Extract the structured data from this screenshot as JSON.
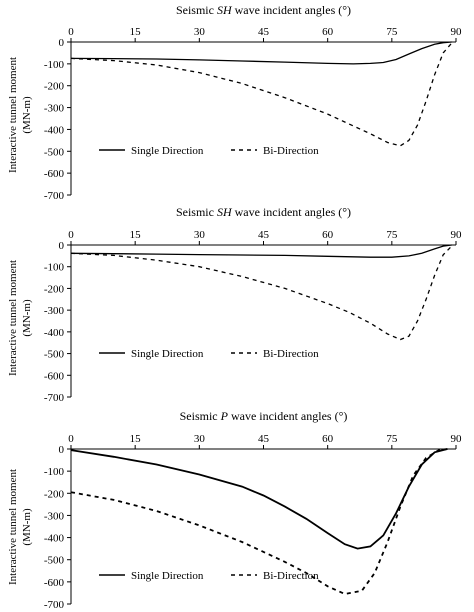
{
  "ylabel_line1": "Interactive tunnel moment",
  "ylabel_line2": "(MN-m)",
  "legend_labels": [
    "Single Direction",
    "Bi-Direction"
  ],
  "chart_data": [
    {
      "type": "line",
      "title_prefix": "Seismic ",
      "title_wave": "SH",
      "title_suffix": " wave incident angles (°)",
      "x_ticks": [
        0,
        15,
        30,
        45,
        60,
        75,
        90
      ],
      "y_ticks": [
        0,
        -100,
        -200,
        -300,
        -400,
        -500,
        -600,
        -700
      ],
      "xlim": [
        0,
        90
      ],
      "ylim": [
        -700,
        0
      ],
      "x_axis_position": "top",
      "legend_position": "lower-left",
      "series": [
        {
          "name": "Single Direction",
          "style": "solid",
          "x": [
            0,
            10,
            20,
            30,
            40,
            50,
            60,
            66,
            70,
            73,
            76,
            79,
            82,
            85,
            87,
            89
          ],
          "y": [
            -75,
            -76,
            -78,
            -82,
            -87,
            -92,
            -98,
            -100,
            -98,
            -94,
            -80,
            -55,
            -30,
            -10,
            -3,
            0
          ]
        },
        {
          "name": "Bi-Direction",
          "style": "dashed",
          "x": [
            0,
            10,
            20,
            30,
            40,
            50,
            60,
            65,
            70,
            74,
            77,
            79,
            81,
            83,
            85,
            87,
            89
          ],
          "y": [
            -75,
            -85,
            -105,
            -140,
            -190,
            -255,
            -330,
            -375,
            -420,
            -460,
            -475,
            -450,
            -380,
            -270,
            -150,
            -50,
            -5
          ]
        }
      ]
    },
    {
      "type": "line",
      "title_prefix": "Seismic ",
      "title_wave": "SH",
      "title_suffix": " wave incident angles (°)",
      "x_ticks": [
        0,
        15,
        30,
        45,
        60,
        75,
        90
      ],
      "y_ticks": [
        0,
        -100,
        -200,
        -300,
        -400,
        -500,
        -600,
        -700
      ],
      "xlim": [
        0,
        90
      ],
      "ylim": [
        -700,
        0
      ],
      "x_axis_position": "top",
      "legend_position": "lower-left",
      "series": [
        {
          "name": "Single Direction",
          "style": "solid",
          "x": [
            0,
            10,
            20,
            30,
            40,
            50,
            60,
            70,
            75,
            79,
            82,
            85,
            87,
            89
          ],
          "y": [
            -38,
            -40,
            -42,
            -44,
            -46,
            -48,
            -52,
            -56,
            -56,
            -50,
            -38,
            -18,
            -5,
            0
          ]
        },
        {
          "name": "Bi-Direction",
          "style": "dashed",
          "x": [
            0,
            10,
            20,
            30,
            40,
            50,
            60,
            65,
            70,
            74,
            77,
            79,
            81,
            83,
            85,
            87,
            89
          ],
          "y": [
            -38,
            -48,
            -70,
            -100,
            -145,
            -200,
            -270,
            -310,
            -360,
            -410,
            -435,
            -420,
            -350,
            -250,
            -140,
            -45,
            -5
          ]
        }
      ]
    },
    {
      "type": "line",
      "title_prefix": "Seismic ",
      "title_wave": "P",
      "title_suffix": " wave incident angles (°)",
      "x_ticks": [
        0,
        15,
        30,
        45,
        60,
        75,
        90
      ],
      "y_ticks": [
        0,
        -100,
        -200,
        -300,
        -400,
        -500,
        -600,
        -700
      ],
      "xlim": [
        0,
        90
      ],
      "ylim": [
        -700,
        0
      ],
      "x_axis_position": "top",
      "legend_position": "lower-left",
      "series": [
        {
          "name": "Single Direction",
          "style": "solid",
          "x": [
            0,
            10,
            20,
            30,
            40,
            45,
            50,
            55,
            60,
            64,
            67,
            70,
            73,
            76,
            79,
            82,
            85,
            88
          ],
          "y": [
            -5,
            -35,
            -70,
            -115,
            -170,
            -210,
            -260,
            -315,
            -380,
            -430,
            -450,
            -440,
            -390,
            -290,
            -170,
            -70,
            -15,
            0
          ]
        },
        {
          "name": "Bi-Direction",
          "style": "dashed",
          "x": [
            0,
            10,
            20,
            30,
            40,
            50,
            55,
            60,
            64,
            68,
            71,
            74,
            77,
            80,
            83,
            86,
            88
          ],
          "y": [
            -195,
            -230,
            -280,
            -345,
            -420,
            -510,
            -560,
            -620,
            -655,
            -640,
            -560,
            -420,
            -260,
            -120,
            -40,
            -5,
            0
          ]
        }
      ]
    }
  ]
}
